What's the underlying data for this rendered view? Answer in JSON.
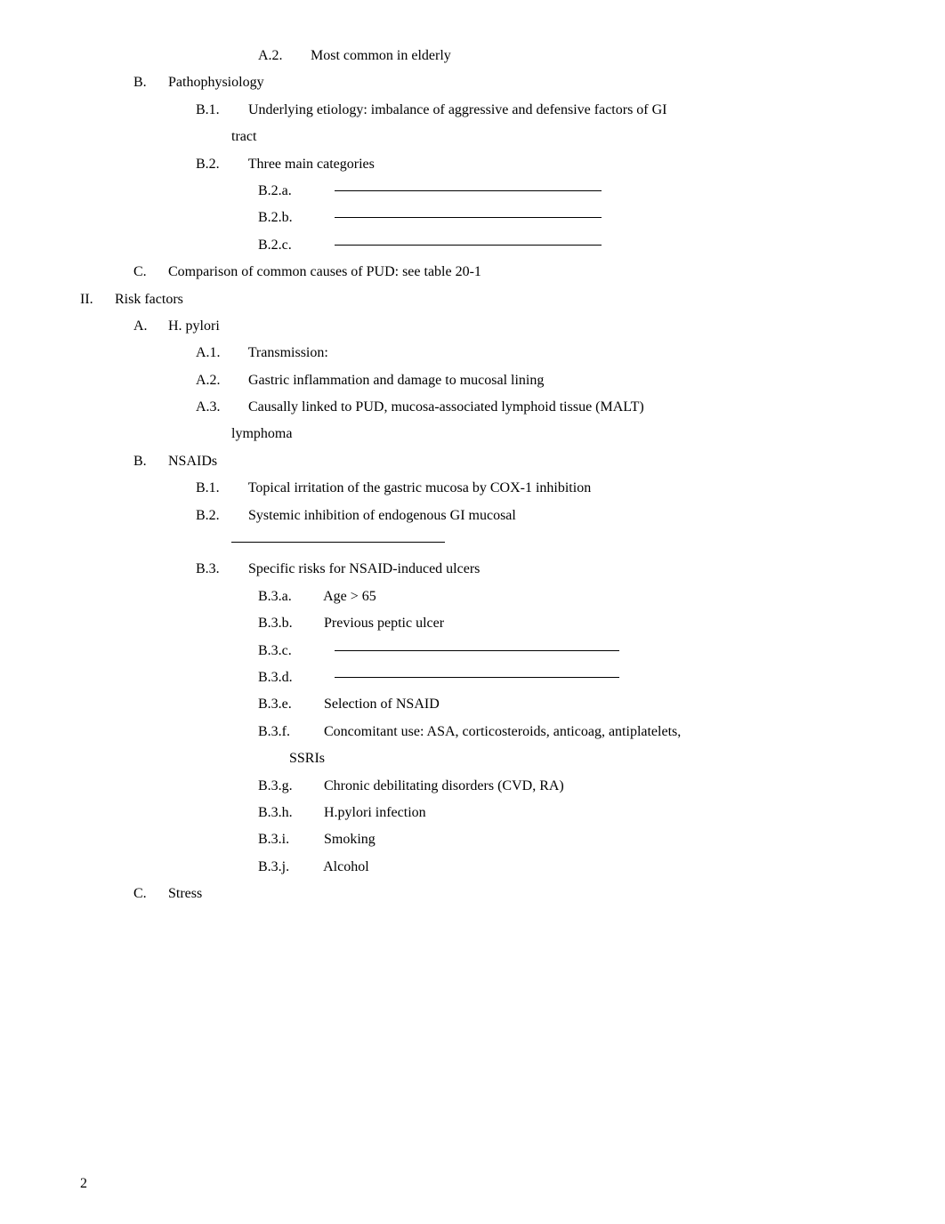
{
  "lines": {
    "a2_num": "A.2.",
    "a2_txt": "Most common in elderly",
    "b_label": "B.",
    "b_txt": "Pathophysiology",
    "b1_num": "B.1.",
    "b1_txt": "Underlying etiology: imbalance of aggressive and defensive factors of GI",
    "b1_cont": "tract",
    "b2_num": "B.2.",
    "b2_txt": "Three main categories",
    "b2a_num": "B.2.a.",
    "b2b_num": "B.2.b.",
    "b2c_num": "B.2.c.",
    "c_label": "C.",
    "c_txt": "Comparison of common causes of PUD: see table 20-1",
    "ii_num": "II.",
    "ii_txt": "Risk factors",
    "a_label": "A.",
    "a_txt": "H. pylori",
    "a1_num": "A.1.",
    "a1_txt": "Transmission:",
    "aa2_num": "A.2.",
    "aa2_txt": "Gastric inflammation and damage to mucosal lining",
    "a3_num": "A.3.",
    "a3_txt": "Causally linked to PUD, mucosa-associated lymphoid tissue (MALT)",
    "a3_cont": "lymphoma",
    "bb_label": "B.",
    "bb_txt": "NSAIDs",
    "bb1_num": "B.1.",
    "bb1_txt": "Topical irritation of the gastric mucosa by COX-1 inhibition",
    "bb2_num": "B.2.",
    "bb2_txt": "Systemic inhibition of endogenous GI mucosal",
    "bb3_num": "B.3.",
    "bb3_txt": "Specific risks for NSAID-induced ulcers",
    "b3a_num": "B.3.a.",
    "b3a_txt": "Age > 65",
    "b3b_num": "B.3.b.",
    "b3b_txt": "Previous peptic ulcer",
    "b3c_num": "B.3.c.",
    "b3d_num": "B.3.d.",
    "b3e_num": "B.3.e.",
    "b3e_txt": "Selection of NSAID",
    "b3f_num": "B.3.f.",
    "b3f_txt": "Concomitant use: ASA, corticosteroids, anticoag, antiplatelets,",
    "b3f_cont": "SSRIs",
    "b3g_num": "B.3.g.",
    "b3g_txt": "Chronic debilitating disorders (CVD, RA)",
    "b3h_num": "B.3.h.",
    "b3h_txt": "H.pylori infection",
    "b3i_num": "B.3.i.",
    "b3i_txt": "Smoking",
    "b3j_num": "B.3.j.",
    "b3j_txt": "Alcohol",
    "cc_label": "C.",
    "cc_txt": "Stress",
    "page_num": "2"
  }
}
